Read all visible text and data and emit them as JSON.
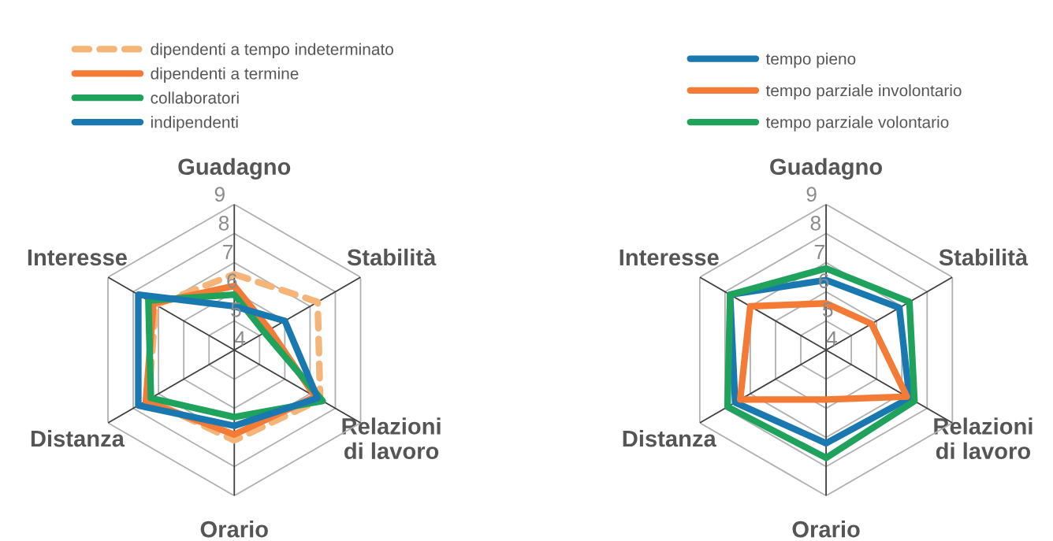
{
  "chart_data": [
    {
      "type": "radar",
      "categories": [
        "Guadagno",
        "Stabilità",
        "Relazioni\ndi lavoro",
        "Orario",
        "Distanza",
        "Interesse"
      ],
      "ylim": [
        4,
        9
      ],
      "yticks": [
        4,
        5,
        6,
        7,
        8,
        9
      ],
      "grid": true,
      "legend": "top",
      "series": [
        {
          "name": "dipendenti a tempo indeterminato",
          "color": "#f5b478",
          "line_style": "dashed",
          "values": [
            6.6,
            7.3,
            7.4,
            7.1,
            7.4,
            7.1
          ]
        },
        {
          "name": "dipendenti a termine",
          "color": "#f47b35",
          "values": [
            6.2,
            5.4,
            7.2,
            6.9,
            7.5,
            7.2
          ]
        },
        {
          "name": "collaboratori",
          "color": "#1fa35c",
          "values": [
            5.9,
            5.2,
            7.5,
            6.3,
            7.3,
            7.4
          ]
        },
        {
          "name": "indipendenti",
          "color": "#1a78b0",
          "values": [
            5.5,
            6.0,
            7.3,
            6.6,
            7.8,
            7.8
          ]
        }
      ]
    },
    {
      "type": "radar",
      "categories": [
        "Guadagno",
        "Stabilità",
        "Relazioni\ndi lavoro",
        "Orario",
        "Distanza",
        "Interesse"
      ],
      "ylim": [
        4,
        9
      ],
      "yticks": [
        4,
        5,
        6,
        7,
        8,
        9
      ],
      "grid": true,
      "legend": "top",
      "series": [
        {
          "name": "tempo pieno",
          "color": "#1a78b0",
          "values": [
            6.4,
            6.9,
            7.3,
            7.2,
            7.6,
            7.8
          ]
        },
        {
          "name": "tempo parziale involontario",
          "color": "#f47b35",
          "values": [
            5.6,
            5.8,
            7.2,
            5.7,
            7.4,
            7.0
          ]
        },
        {
          "name": "tempo parziale volontario",
          "color": "#1fa35c",
          "values": [
            6.8,
            7.3,
            7.5,
            7.7,
            7.9,
            7.8
          ]
        }
      ]
    }
  ]
}
